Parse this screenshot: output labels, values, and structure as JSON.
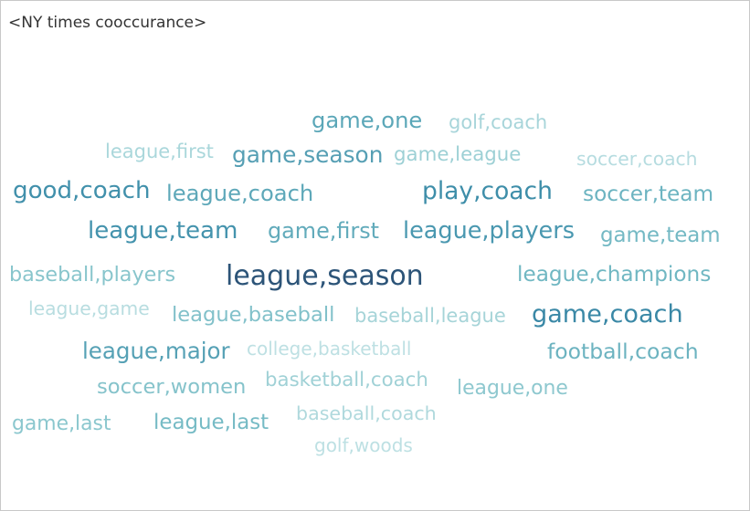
{
  "chart_data": {
    "type": "wordcloud",
    "title": "<NY times cooccurance>",
    "words": [
      {
        "text": "league,season",
        "weight": 100,
        "color": "#2c5478"
      },
      {
        "text": "game,coach",
        "weight": 82,
        "color": "#3a88a6"
      },
      {
        "text": "play,coach",
        "weight": 78,
        "color": "#3e8ea9"
      },
      {
        "text": "good,coach",
        "weight": 76,
        "color": "#4190ab"
      },
      {
        "text": "league,team",
        "weight": 76,
        "color": "#4493ad"
      },
      {
        "text": "league,players",
        "weight": 72,
        "color": "#4a98b0"
      },
      {
        "text": "game,season",
        "weight": 68,
        "color": "#569fb4"
      },
      {
        "text": "league,major",
        "weight": 66,
        "color": "#56a1b5"
      },
      {
        "text": "game,one",
        "weight": 64,
        "color": "#5ba7b8"
      },
      {
        "text": "league,coach",
        "weight": 64,
        "color": "#5ea8b9"
      },
      {
        "text": "game,first",
        "weight": 62,
        "color": "#62abbb"
      },
      {
        "text": "football,coach",
        "weight": 60,
        "color": "#6cb3c0"
      },
      {
        "text": "soccer,team",
        "weight": 58,
        "color": "#6cb4c1"
      },
      {
        "text": "league,champions",
        "weight": 58,
        "color": "#70b7c2"
      },
      {
        "text": "game,team",
        "weight": 56,
        "color": "#74b9c4"
      },
      {
        "text": "league,last",
        "weight": 56,
        "color": "#76bbc5"
      },
      {
        "text": "league,baseball",
        "weight": 54,
        "color": "#82c1ca"
      },
      {
        "text": "soccer,women",
        "weight": 54,
        "color": "#85c3cb"
      },
      {
        "text": "baseball,players",
        "weight": 52,
        "color": "#88c5cc"
      },
      {
        "text": "game,last",
        "weight": 50,
        "color": "#8bc7ce"
      },
      {
        "text": "league,one",
        "weight": 50,
        "color": "#8ec8cf"
      },
      {
        "text": "game,league",
        "weight": 46,
        "color": "#9dd0d5"
      },
      {
        "text": "basketball,coach",
        "weight": 46,
        "color": "#a0d1d6"
      },
      {
        "text": "baseball,league",
        "weight": 44,
        "color": "#a6d4d8"
      },
      {
        "text": "golf,coach",
        "weight": 44,
        "color": "#a8d5da"
      },
      {
        "text": "league,first",
        "weight": 44,
        "color": "#aad7db"
      },
      {
        "text": "baseball,coach",
        "weight": 42,
        "color": "#b0d9dd"
      },
      {
        "text": "soccer,coach",
        "weight": 40,
        "color": "#b6dce0"
      },
      {
        "text": "league,game",
        "weight": 40,
        "color": "#b8dde0"
      },
      {
        "text": "college,basketball",
        "weight": 38,
        "color": "#bee0e3"
      },
      {
        "text": "golf,woods",
        "weight": 38,
        "color": "#bde0e3"
      }
    ]
  }
}
